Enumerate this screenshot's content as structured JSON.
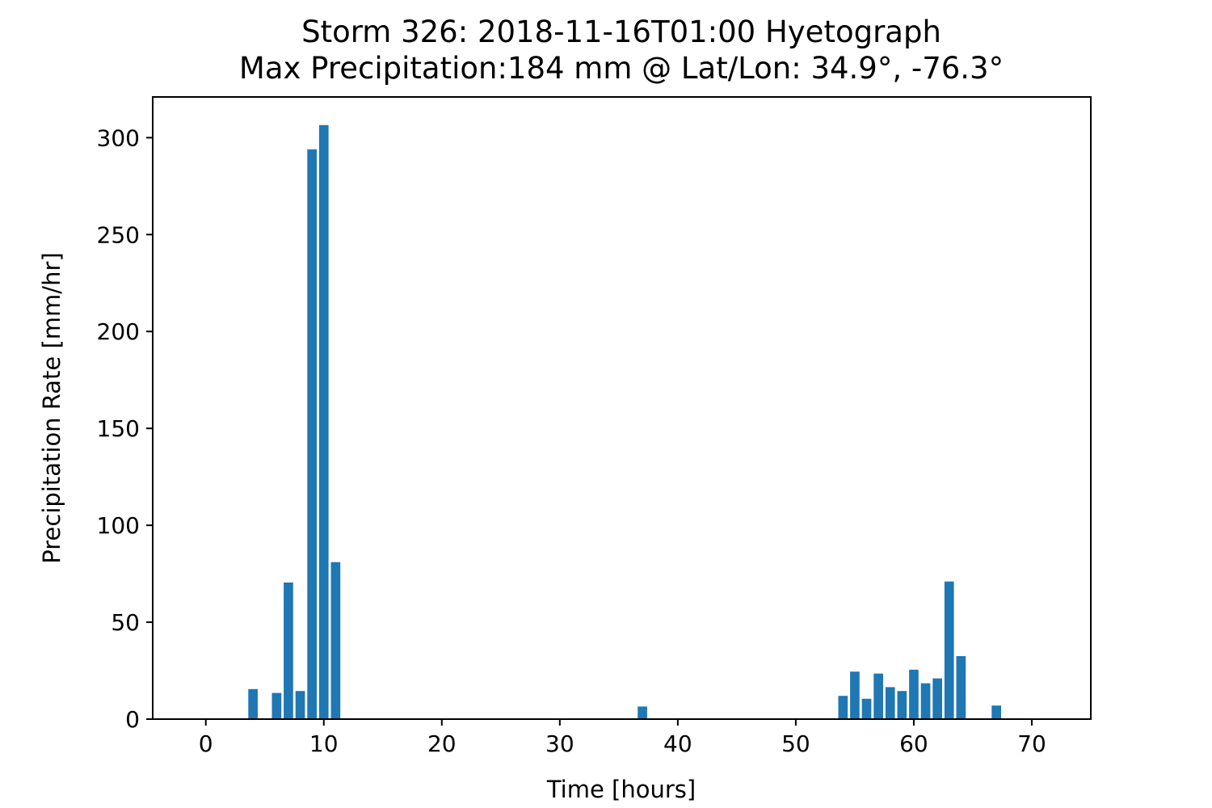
{
  "chart_data": {
    "type": "bar",
    "title": "Storm 326: 2018-11-16T01:00 Hyetograph",
    "subtitle": "Max Precipitation:184 mm @ Lat/Lon:  34.9°, -76.3°",
    "xlabel": "Time [hours]",
    "ylabel": "Precipitation Rate [mm/hr]",
    "xlim": [
      -4.5,
      75
    ],
    "ylim": [
      0,
      321
    ],
    "xticks": [
      0,
      10,
      20,
      30,
      40,
      50,
      60,
      70
    ],
    "yticks": [
      0,
      50,
      100,
      150,
      200,
      250,
      300
    ],
    "bar_color": "#1f77b4",
    "grid": false,
    "x": [
      4,
      6,
      7,
      8,
      9,
      10,
      11,
      37,
      54,
      55,
      56,
      57,
      58,
      59,
      60,
      61,
      62,
      63,
      64,
      67
    ],
    "values": [
      15.5,
      13.5,
      70.5,
      14.5,
      294,
      306.5,
      81,
      6.5,
      12,
      24.5,
      10.5,
      23.5,
      16.5,
      14.5,
      25.5,
      18.5,
      21,
      71,
      32.5,
      7
    ]
  }
}
